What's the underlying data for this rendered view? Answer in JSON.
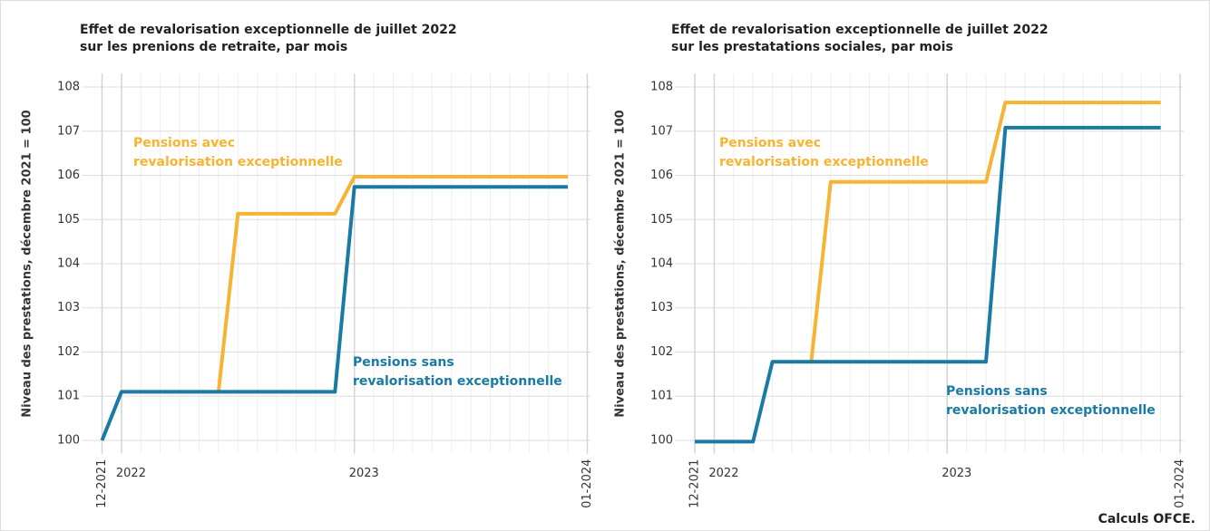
{
  "chart_data": [
    {
      "type": "line",
      "title": [
        "Effet de revalorisation exceptionnelle de juillet 2022",
        "sur les prenions de retraite, par mois"
      ],
      "y_label": "Niveau des prestations, décembre 2021 = 100",
      "x": [
        "12-2021",
        "01-2022",
        "02-2022",
        "03-2022",
        "04-2022",
        "05-2022",
        "06-2022",
        "07-2022",
        "08-2022",
        "09-2022",
        "10-2022",
        "11-2022",
        "12-2022",
        "01-2023",
        "02-2023",
        "03-2023",
        "04-2023",
        "05-2023",
        "06-2023",
        "07-2023",
        "08-2023",
        "09-2023",
        "10-2023",
        "11-2023",
        "12-2023"
      ],
      "series": [
        {
          "annotation": [
            "Pensions avec",
            "revalorisation exceptionnelle"
          ],
          "color": "#f7b334",
          "values": [
            null,
            null,
            null,
            null,
            null,
            null,
            101.1,
            105.13,
            105.13,
            105.13,
            105.13,
            105.13,
            105.13,
            105.97,
            105.97,
            105.97,
            105.97,
            105.97,
            105.97,
            105.97,
            105.97,
            105.97,
            105.97,
            105.97,
            105.97
          ]
        },
        {
          "annotation": [
            "Pensions sans",
            "revalorisation exceptionnelle"
          ],
          "color": "#1b7aa3",
          "values": [
            100,
            101.1,
            101.1,
            101.1,
            101.1,
            101.1,
            101.1,
            101.1,
            101.1,
            101.1,
            101.1,
            101.1,
            101.1,
            105.74,
            105.74,
            105.74,
            105.74,
            105.74,
            105.74,
            105.74,
            105.74,
            105.74,
            105.74,
            105.74,
            105.74
          ]
        }
      ],
      "xticks": [
        {
          "value": "12-2021",
          "label": "12-2021"
        },
        {
          "value": "01-2022",
          "label": "2022"
        },
        {
          "value": "01-2023",
          "label": "2023"
        },
        "01-2024"
      ],
      "ylim": [
        99.7,
        108.3
      ],
      "yticks": [
        100,
        101,
        102,
        103,
        104,
        105,
        106,
        107,
        108
      ],
      "grid": true
    },
    {
      "type": "line",
      "title": [
        "Effet de revalorisation exceptionnelle de juillet 2022",
        "sur les prestatations sociales, par mois"
      ],
      "y_label": "Niveau des prestations, décembre 2021 = 100",
      "x": [
        "12-2021",
        "01-2022",
        "02-2022",
        "03-2022",
        "04-2022",
        "05-2022",
        "06-2022",
        "07-2022",
        "08-2022",
        "09-2022",
        "10-2022",
        "11-2022",
        "12-2022",
        "01-2023",
        "02-2023",
        "03-2023",
        "04-2023",
        "05-2023",
        "06-2023",
        "07-2023",
        "08-2023",
        "09-2023",
        "10-2023",
        "11-2023",
        "12-2023"
      ],
      "series": [
        {
          "annotation": [
            "Pensions avec",
            "revalorisation exceptionnelle"
          ],
          "color": "#f7b334",
          "values": [
            null,
            null,
            null,
            null,
            null,
            null,
            101.78,
            105.85,
            105.85,
            105.85,
            105.85,
            105.85,
            105.85,
            105.85,
            105.85,
            105.85,
            107.65,
            107.65,
            107.65,
            107.65,
            107.65,
            107.65,
            107.65,
            107.65,
            107.65
          ]
        },
        {
          "annotation": [
            "Pensions sans",
            "revalorisation exceptionnelle"
          ],
          "color": "#1b7aa3",
          "values": [
            99.97,
            99.97,
            99.97,
            99.97,
            101.78,
            101.78,
            101.78,
            101.78,
            101.78,
            101.78,
            101.78,
            101.78,
            101.78,
            101.78,
            101.78,
            101.78,
            107.08,
            107.08,
            107.08,
            107.08,
            107.08,
            107.08,
            107.08,
            107.08,
            107.08
          ]
        }
      ],
      "xticks": [
        {
          "value": "12-2021",
          "label": "12-2021"
        },
        {
          "value": "01-2022",
          "label": "2022"
        },
        {
          "value": "01-2023",
          "label": "2023"
        },
        "01-2024"
      ],
      "ylim": [
        99.7,
        108.3
      ],
      "yticks": [
        100,
        101,
        102,
        103,
        104,
        105,
        106,
        107,
        108
      ],
      "grid": true
    }
  ],
  "source": "Calculs OFCE."
}
